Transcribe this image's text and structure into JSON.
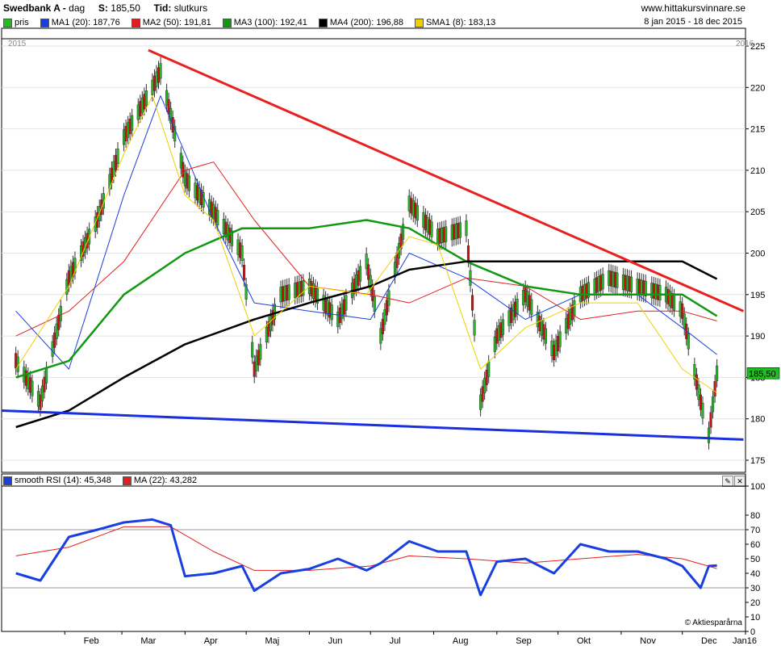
{
  "header": {
    "ticker": "Swedbank A -",
    "period": "dag",
    "s_label": "S:",
    "s_value": "185,50",
    "tid_label": "Tid:",
    "tid_value": "slutkurs",
    "site": "www.hittakursvinnare.se"
  },
  "price_legend": [
    {
      "label": "pris",
      "color": "#22bb22"
    },
    {
      "label": "MA1 (20): 187,76",
      "color": "#1a3fe0"
    },
    {
      "label": "MA2 (50): 191,81",
      "color": "#e02020"
    },
    {
      "label": "MA3 (100): 192,41",
      "color": "#119911"
    },
    {
      "label": "MA4 (200): 196,88",
      "color": "#000000"
    },
    {
      "label": "SMA1 (8): 183,13",
      "color": "#f0d000"
    }
  ],
  "date_range": "8 jan 2015 - 18 dec 2015",
  "year_start": "2015",
  "year_end": "2016",
  "last_price_label": "185,50",
  "rsi_legend": [
    {
      "label": "smooth RSI (14): 45,348",
      "color": "#1a3fe0"
    },
    {
      "label": "MA (22): 43,282",
      "color": "#e02020"
    }
  ],
  "credit": "© Aktiesparårna",
  "chart_data": [
    {
      "type": "candlestick",
      "title": "Swedbank A",
      "ylim": [
        175,
        225
      ],
      "y_ticks": [
        175,
        180,
        185,
        190,
        195,
        200,
        205,
        210,
        215,
        220,
        225
      ],
      "x_ticks": [
        "Feb",
        "Mar",
        "Apr",
        "Maj",
        "Jun",
        "Jul",
        "Aug",
        "Sep",
        "Okt",
        "Nov",
        "Dec",
        "Jan16"
      ],
      "series": [
        {
          "name": "pris",
          "x": [
            "2015-01-08",
            "2015-01-20",
            "2015-02-03",
            "2015-02-17",
            "2015-03-02",
            "2015-03-16",
            "2015-03-20",
            "2015-04-01",
            "2015-04-15",
            "2015-04-29",
            "2015-05-05",
            "2015-05-18",
            "2015-06-01",
            "2015-06-15",
            "2015-06-29",
            "2015-07-06",
            "2015-07-20",
            "2015-08-03",
            "2015-08-17",
            "2015-08-24",
            "2015-09-01",
            "2015-09-15",
            "2015-09-29",
            "2015-10-12",
            "2015-10-26",
            "2015-11-09",
            "2015-11-23",
            "2015-12-01",
            "2015-12-10",
            "2015-12-14",
            "2015-12-18"
          ],
          "values": [
            187,
            182,
            197,
            204,
            214,
            220,
            222,
            209,
            205,
            200,
            186,
            195,
            196,
            192,
            199,
            190,
            206,
            202,
            203,
            182,
            190,
            195,
            188,
            195,
            197,
            196,
            195,
            193,
            182,
            178,
            185.5
          ]
        },
        {
          "name": "MA1 (20)",
          "x": [
            "2015-01-08",
            "2015-02-03",
            "2015-03-02",
            "2015-03-20",
            "2015-04-15",
            "2015-05-05",
            "2015-06-01",
            "2015-07-01",
            "2015-07-20",
            "2015-08-17",
            "2015-09-15",
            "2015-10-12",
            "2015-11-09",
            "2015-12-01",
            "2015-12-18"
          ],
          "values": [
            193,
            186,
            207,
            219,
            204,
            194,
            193,
            192,
            200,
            197,
            192,
            195,
            195,
            191,
            187.76
          ]
        },
        {
          "name": "MA2 (50)",
          "x": [
            "2015-01-08",
            "2015-02-03",
            "2015-03-02",
            "2015-04-01",
            "2015-04-15",
            "2015-05-05",
            "2015-06-01",
            "2015-07-01",
            "2015-07-20",
            "2015-08-17",
            "2015-09-15",
            "2015-10-12",
            "2015-11-09",
            "2015-12-01",
            "2015-12-18"
          ],
          "values": [
            190,
            193,
            199,
            210,
            211,
            204,
            196,
            195,
            194,
            197,
            196,
            192,
            193,
            193,
            191.81
          ]
        },
        {
          "name": "MA3 (100)",
          "x": [
            "2015-01-08",
            "2015-02-03",
            "2015-03-02",
            "2015-04-01",
            "2015-04-29",
            "2015-06-01",
            "2015-06-29",
            "2015-07-20",
            "2015-08-17",
            "2015-09-15",
            "2015-10-12",
            "2015-11-09",
            "2015-12-01",
            "2015-12-18"
          ],
          "values": [
            185,
            187,
            195,
            200,
            203,
            203,
            204,
            203,
            199,
            196,
            195,
            195,
            195,
            192.41
          ]
        },
        {
          "name": "MA4 (200)",
          "x": [
            "2015-01-08",
            "2015-02-03",
            "2015-03-02",
            "2015-04-01",
            "2015-05-05",
            "2015-06-01",
            "2015-07-01",
            "2015-07-20",
            "2015-08-17",
            "2015-09-15",
            "2015-10-12",
            "2015-11-09",
            "2015-12-01",
            "2015-12-18"
          ],
          "values": [
            179,
            181,
            185,
            189,
            192,
            194,
            196,
            198,
            199,
            199,
            199,
            199,
            199,
            196.88
          ]
        },
        {
          "name": "SMA1 (8)",
          "x": [
            "2015-01-08",
            "2015-02-03",
            "2015-03-02",
            "2015-03-16",
            "2015-04-01",
            "2015-04-15",
            "2015-05-05",
            "2015-06-01",
            "2015-06-29",
            "2015-07-20",
            "2015-08-03",
            "2015-08-24",
            "2015-09-15",
            "2015-10-12",
            "2015-11-09",
            "2015-12-01",
            "2015-12-18"
          ],
          "values": [
            186,
            196,
            212,
            219,
            207,
            204,
            190,
            196,
            195,
            202,
            201,
            186,
            191,
            194,
            194,
            186,
            183.13
          ]
        }
      ],
      "trendlines": [
        {
          "name": "resistance",
          "color": "#e82020",
          "points": [
            [
              "2015-03-14",
              224.5
            ],
            [
              "2015-12-31",
              193
            ]
          ]
        },
        {
          "name": "support",
          "color": "#1a2fe0",
          "points": [
            [
              "2015-01-01",
              181
            ],
            [
              "2015-12-31",
              177.5
            ]
          ]
        }
      ]
    },
    {
      "type": "line",
      "ylim": [
        0,
        100
      ],
      "y_ticks": [
        0,
        10,
        20,
        30,
        40,
        50,
        60,
        70,
        80,
        100
      ],
      "reference_lines": [
        30,
        70
      ],
      "series": [
        {
          "name": "smooth RSI (14)",
          "x": [
            "2015-01-08",
            "2015-01-20",
            "2015-02-03",
            "2015-02-17",
            "2015-03-02",
            "2015-03-16",
            "2015-03-25",
            "2015-04-01",
            "2015-04-15",
            "2015-04-29",
            "2015-05-05",
            "2015-05-18",
            "2015-06-01",
            "2015-06-15",
            "2015-06-29",
            "2015-07-06",
            "2015-07-20",
            "2015-08-03",
            "2015-08-17",
            "2015-08-24",
            "2015-09-01",
            "2015-09-15",
            "2015-09-29",
            "2015-10-12",
            "2015-10-26",
            "2015-11-09",
            "2015-11-23",
            "2015-12-01",
            "2015-12-10",
            "2015-12-14",
            "2015-12-18"
          ],
          "values": [
            40,
            35,
            65,
            70,
            75,
            77,
            73,
            38,
            40,
            45,
            28,
            40,
            43,
            50,
            42,
            47,
            62,
            55,
            55,
            25,
            48,
            50,
            40,
            60,
            55,
            55,
            50,
            45,
            30,
            45,
            45.348
          ]
        },
        {
          "name": "MA (22)",
          "x": [
            "2015-01-08",
            "2015-02-03",
            "2015-03-02",
            "2015-03-25",
            "2015-04-15",
            "2015-05-05",
            "2015-06-01",
            "2015-07-01",
            "2015-07-20",
            "2015-08-17",
            "2015-09-15",
            "2015-10-12",
            "2015-11-09",
            "2015-12-01",
            "2015-12-18"
          ],
          "values": [
            52,
            58,
            72,
            72,
            55,
            42,
            42,
            45,
            52,
            50,
            47,
            50,
            53,
            50,
            43.282
          ]
        }
      ]
    }
  ]
}
